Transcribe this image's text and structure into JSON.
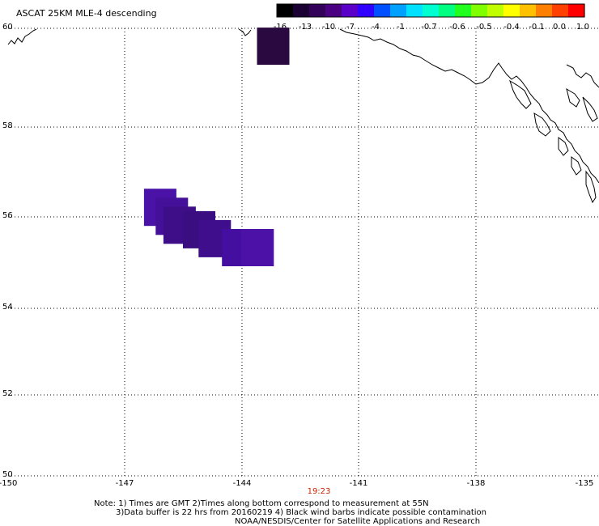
{
  "title": "ASCAT 25KM MLE-4 descending",
  "colorbar": {
    "labels": [
      "-16",
      "-13",
      "-10",
      "-7",
      "-4",
      "-1",
      "-0.7",
      "-0.6",
      "-0.5",
      "-0.4",
      "-0.1",
      "0.0",
      "1.0"
    ],
    "colors": [
      "#000000",
      "#1a0033",
      "#33005a",
      "#4b0082",
      "#5a00c8",
      "#3000ff",
      "#0050ff",
      "#00a0ff",
      "#00e0ff",
      "#00ffd0",
      "#00ff80",
      "#20ff20",
      "#80ff00",
      "#c0ff00",
      "#ffff00",
      "#ffc000",
      "#ff8000",
      "#ff4000",
      "#ff0000"
    ]
  },
  "axes": {
    "lat_labels": [
      "60",
      "58",
      "56",
      "54",
      "52",
      "50"
    ],
    "lon_labels": [
      "-150",
      "-147",
      "-144",
      "-141",
      "-138",
      "-135"
    ]
  },
  "time_label": "19:23",
  "time_color": "#cc2200",
  "notes": {
    "line1": "Note: 1) Times are GMT 2)Times along bottom correspond to measurement at 55N",
    "line2": "3)Data buffer is 22 hrs from 20160219 4) Black wind barbs indicate possible contamination",
    "line3": "NOAA/NESDIS/Center for Satellite Applications and Research"
  },
  "data_cells": [
    {
      "lon": -143.2,
      "lat": 59.6,
      "color": "#2a0840"
    },
    {
      "lon": -146.1,
      "lat": 56.0,
      "color": "#4b12a8"
    },
    {
      "lon": -145.8,
      "lat": 55.8,
      "color": "#44109a"
    },
    {
      "lon": -145.6,
      "lat": 55.6,
      "color": "#3d0e88"
    },
    {
      "lon": -145.1,
      "lat": 55.5,
      "color": "#3a0d80"
    },
    {
      "lon": -144.7,
      "lat": 55.3,
      "color": "#3f0e8c"
    },
    {
      "lon": -144.1,
      "lat": 55.1,
      "color": "#440fa0"
    },
    {
      "lon": -143.6,
      "lat": 55.1,
      "color": "#4c12a8"
    }
  ]
}
